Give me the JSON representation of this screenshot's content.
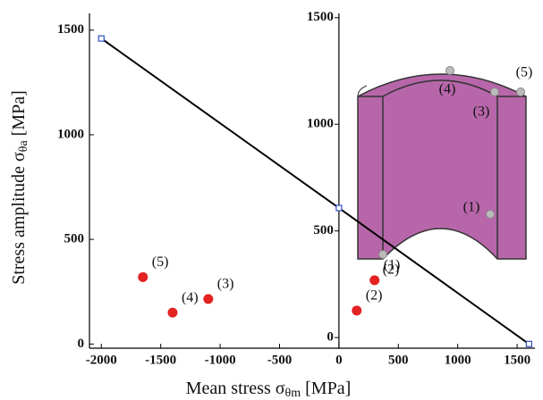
{
  "chart_data": {
    "type": "scatter",
    "x_label": {
      "text": "Mean stress σ",
      "sub": "θm",
      "unit": "[MPa]"
    },
    "y_label": {
      "text": "Stress amplitude σ",
      "sub": "θa",
      "unit": "[MPa]"
    },
    "x": [
      300,
      150,
      -1100,
      -1400,
      -1650
    ],
    "values": [
      305,
      160,
      215,
      150,
      320
    ],
    "point_labels": [
      "(1)",
      "(2)",
      "(3)",
      "(4)",
      "(5)"
    ],
    "color": "#e32222",
    "line": {
      "x": [
        -2000,
        0,
        1600
      ],
      "values": [
        1460,
        650,
        0
      ],
      "color": "#000000",
      "marker_color": "#3050c0"
    },
    "xlim": [
      -2100,
      1650
    ],
    "xticks": [
      -2000,
      -1500,
      -1000,
      -500,
      0,
      500,
      1000,
      1500
    ],
    "ylim": [
      -20,
      1580
    ],
    "yticks": [
      0,
      500,
      1000,
      1500
    ],
    "y2lim": [
      -50,
      1520
    ],
    "y2ticks": [
      0,
      500,
      1000,
      1500
    ],
    "inset_labels": [
      "(1)",
      "(2)",
      "(3)",
      "(4)",
      "(5)"
    ]
  }
}
